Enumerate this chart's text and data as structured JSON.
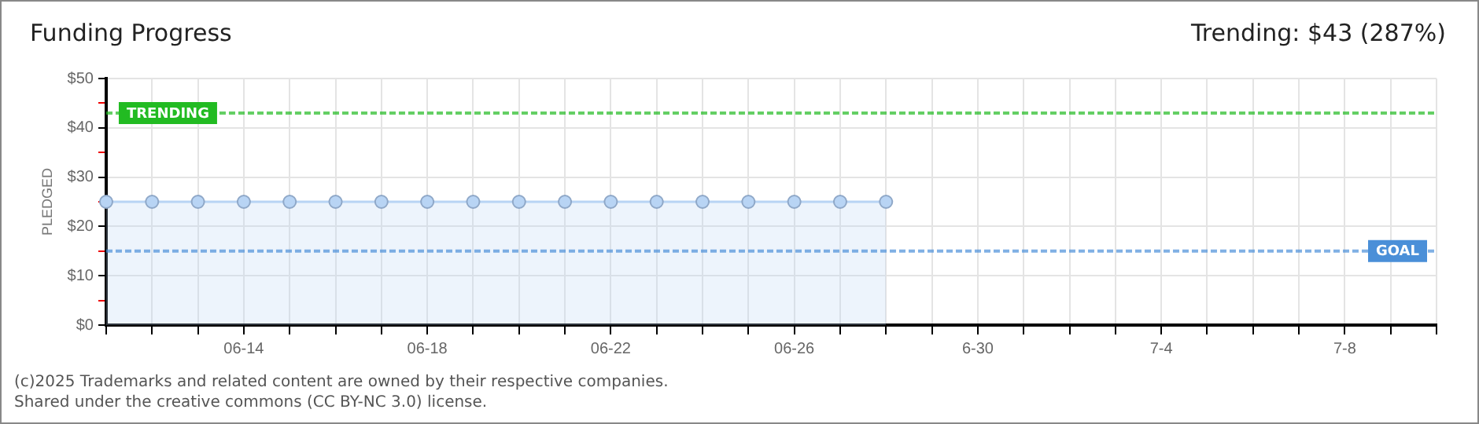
{
  "chart_data": {
    "type": "area",
    "title": "Funding Progress",
    "ylabel": "PLEDGED",
    "annotations": [
      "Trending: $43 (287%)",
      "(c)2025 Trademarks and related content are owned by their respective companies.",
      "Shared under the creative commons (CC BY-NC 3.0) license."
    ],
    "categories": [
      null,
      null,
      null,
      "06-14",
      null,
      null,
      null,
      "06-18",
      null,
      null,
      null,
      "06-22",
      null,
      null,
      null,
      "06-26",
      null,
      null,
      null,
      "6-30",
      null,
      null,
      null,
      "7-4",
      null,
      null,
      null,
      "7-8",
      null,
      null
    ],
    "series": [
      {
        "color": "#b8d4f4",
        "values": [
          25,
          25,
          25,
          25,
          25,
          25,
          25,
          25,
          25,
          25,
          25,
          25,
          25,
          25,
          25,
          25,
          25,
          25,
          null,
          null,
          null,
          null,
          null,
          null,
          null,
          null,
          null,
          null,
          null,
          null
        ]
      }
    ],
    "ylim": [
      0,
      50
    ],
    "yticks": [
      {
        "value": 0,
        "label": "$0"
      },
      {
        "value": 5,
        "label": null
      },
      {
        "value": 10,
        "label": "$10"
      },
      {
        "value": 15,
        "label": null
      },
      {
        "value": 20,
        "label": "$20"
      },
      {
        "value": 25,
        "label": null
      },
      {
        "value": 30,
        "label": "$30"
      },
      {
        "value": 35,
        "label": null
      },
      {
        "value": 40,
        "label": "$40"
      },
      {
        "value": 45,
        "label": null
      },
      {
        "value": 50,
        "label": "$50"
      }
    ],
    "ref_lines": [
      {
        "axis": "y",
        "value": 43,
        "label": "TRENDING",
        "color": "#22bb22",
        "line_style": "dashed"
      },
      {
        "axis": "y",
        "value": 15,
        "label": "GOAL",
        "color": "#4a8fd8",
        "line_style": "dashed"
      }
    ],
    "grid": true,
    "legend": false,
    "marker": "circle",
    "line_style": "solid"
  }
}
